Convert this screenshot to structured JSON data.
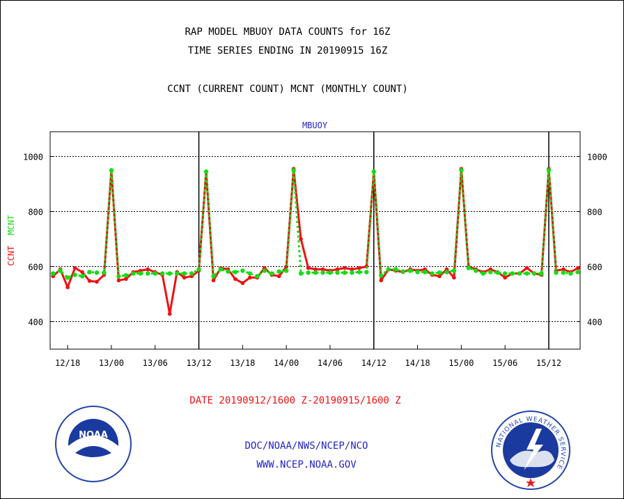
{
  "titles": {
    "line1": "RAP MODEL MBUOY DATA COUNTS for 16Z",
    "line2": "TIME SERIES ENDING IN 20190915 16Z",
    "line3": "CCNT (CURRENT COUNT) MCNT (MONTHLY COUNT)"
  },
  "footer": {
    "line1": "DOC/NOAA/NWS/NCEP/NCO",
    "line2": "WWW.NCEP.NOAA.GOV"
  },
  "logos": {
    "noaa_text": "NOAA",
    "nws_ring": "NATIONAL WEATHER SERVICE"
  },
  "colors": {
    "ccnt": "#ee1111",
    "mcnt": "#11dd11",
    "subtitle": "#2222cc",
    "date": "#ee1111"
  },
  "chart_data": {
    "type": "line",
    "title": "MBUOY",
    "ylabel_parts": [
      "CCNT",
      "MCNT"
    ],
    "date_range": "DATE 20190912/1600 Z-20190915/1600 Z",
    "ylim": [
      300,
      1090
    ],
    "yticks": [
      400,
      600,
      800,
      1000
    ],
    "xticks": [
      {
        "label": "12/18",
        "h": 2
      },
      {
        "label": "13/00",
        "h": 8
      },
      {
        "label": "13/06",
        "h": 14
      },
      {
        "label": "13/12",
        "h": 20
      },
      {
        "label": "13/18",
        "h": 26
      },
      {
        "label": "14/00",
        "h": 32
      },
      {
        "label": "14/06",
        "h": 38
      },
      {
        "label": "14/12",
        "h": 44
      },
      {
        "label": "14/18",
        "h": 50
      },
      {
        "label": "15/00",
        "h": 56
      },
      {
        "label": "15/06",
        "h": 62
      },
      {
        "label": "15/12",
        "h": 68
      }
    ],
    "xlim_hours": [
      -0.4,
      72.3
    ],
    "day_boundaries_hours": [
      20,
      44,
      68
    ],
    "grid": true,
    "series": [
      {
        "name": "CCNT",
        "values": [
          565,
          590,
          525,
          595,
          580,
          548,
          545,
          570,
          950,
          550,
          555,
          580,
          585,
          590,
          580,
          570,
          428,
          580,
          560,
          565,
          585,
          945,
          550,
          595,
          590,
          555,
          540,
          560,
          560,
          595,
          570,
          565,
          600,
          955,
          700,
          595,
          590,
          590,
          585,
          590,
          595,
          590,
          595,
          600,
          945,
          550,
          590,
          585,
          580,
          590,
          585,
          590,
          570,
          565,
          590,
          560,
          955,
          600,
          590,
          580,
          590,
          580,
          560,
          575,
          575,
          595,
          575,
          570,
          955,
          585,
          590,
          580,
          595
        ]
      },
      {
        "name": "MCNT",
        "values": [
          575,
          585,
          560,
          570,
          565,
          580,
          578,
          578,
          950,
          565,
          568,
          575,
          575,
          575,
          575,
          575,
          575,
          575,
          575,
          575,
          590,
          945,
          565,
          590,
          582,
          580,
          585,
          575,
          565,
          585,
          575,
          582,
          585,
          950,
          575,
          578,
          578,
          578,
          578,
          578,
          578,
          578,
          580,
          580,
          945,
          568,
          590,
          590,
          582,
          585,
          580,
          580,
          575,
          578,
          580,
          585,
          950,
          595,
          585,
          575,
          580,
          578,
          575,
          575,
          575,
          575,
          575,
          575,
          950,
          578,
          578,
          575,
          580
        ]
      }
    ]
  }
}
